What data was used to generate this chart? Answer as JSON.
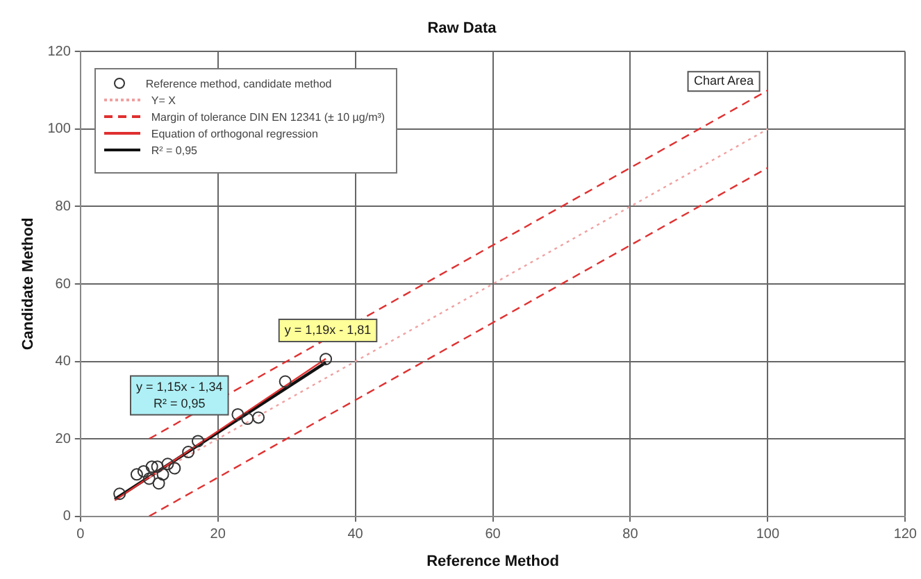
{
  "chart_data": {
    "type": "scatter",
    "title": "Raw Data",
    "xlabel": "Reference Method",
    "ylabel": "Candidate Method",
    "xlim": [
      0,
      120
    ],
    "xticks": [
      0,
      20,
      40,
      60,
      80,
      100,
      120
    ],
    "ylim": [
      0,
      120
    ],
    "yticks": [
      0,
      20,
      40,
      60,
      80,
      100,
      120
    ],
    "grid": true,
    "legend": "top left",
    "marker": "circle",
    "series": [
      {
        "name": "Reference method, candidate method",
        "color": "#333333",
        "x": [
          5.7,
          8.2,
          9.2,
          10.4,
          11.2,
          10,
          11.4,
          12.7,
          13.7,
          12,
          15.7,
          17.1,
          22.9,
          24.3,
          25.9,
          29.8,
          35.7
        ],
        "values": [
          5.8,
          10.8,
          11.6,
          12.8,
          12.8,
          9.7,
          8.5,
          13.5,
          12.4,
          10.8,
          16.6,
          19.4,
          26.3,
          25.2,
          25.5,
          34.8,
          40.6
        ]
      },
      {
        "name": "Y= X",
        "type": "line",
        "color": "#f0a0a0",
        "line_style": "dotted",
        "marker": "none",
        "x": [
          10,
          100
        ],
        "values": [
          10,
          100
        ]
      },
      {
        "name": "Margin of tolerance DIN EN 12341 (± 10 µg/m³)",
        "type": "line",
        "color": "#e03030",
        "line_style": "dashed",
        "marker": "none",
        "x": [
          10,
          100
        ],
        "values": [
          20,
          110
        ]
      },
      {
        "type": "line",
        "color": "#e03030",
        "line_style": "dashed",
        "marker": "none",
        "x": [
          10,
          100
        ],
        "values": [
          0,
          90
        ]
      },
      {
        "name": "Equation of orthogonal regression",
        "type": "line",
        "color": "#e03030",
        "marker": "none",
        "x": [
          5,
          35.7
        ],
        "values": [
          4.1,
          40.7
        ]
      },
      {
        "name": "R² = 0,95",
        "type": "line",
        "color": "#111111",
        "marker": "none",
        "x": [
          5,
          35.7
        ],
        "values": [
          4.4,
          39.7
        ]
      }
    ],
    "annotations": [
      "y = 1,19x - 1,81",
      "y = 1,15x - 1,34\nR² = 0,95",
      "Chart Area"
    ]
  }
}
